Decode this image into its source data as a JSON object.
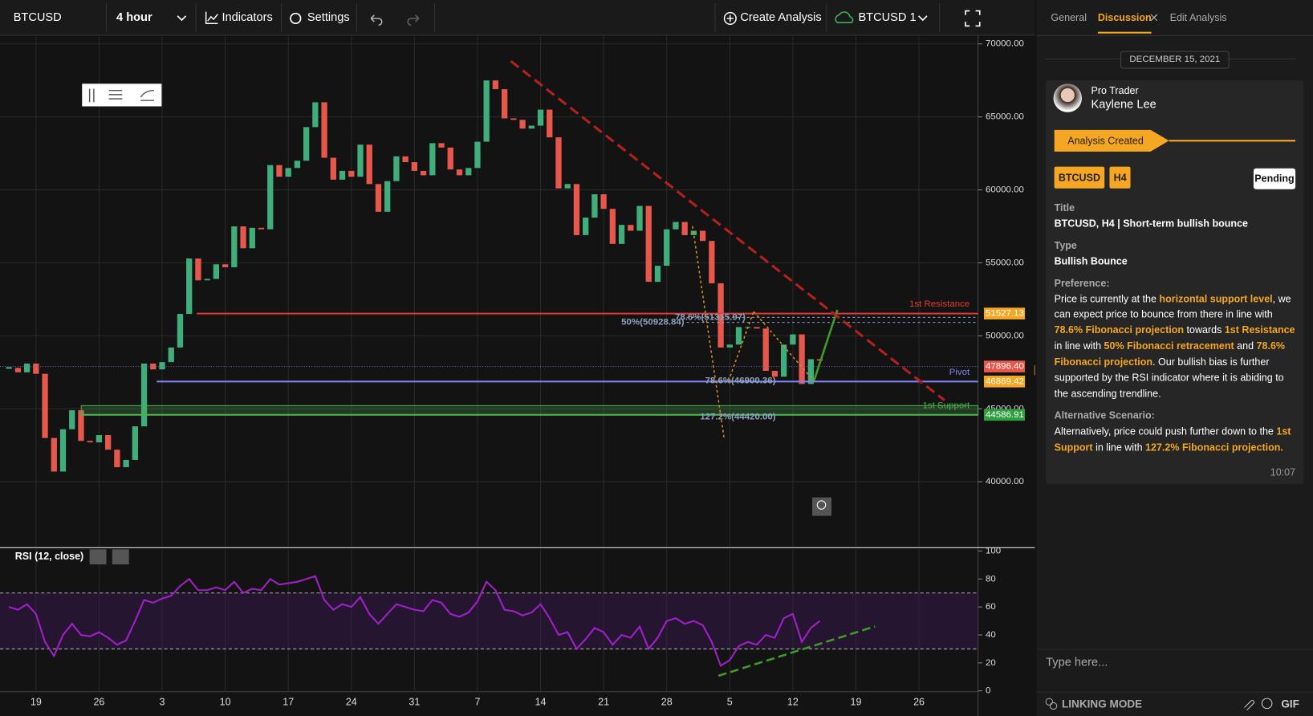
{
  "toolbar": {
    "symbol": "BTCUSD",
    "interval": "4 hour",
    "indicators": "Indicators",
    "settings": "Settings",
    "create": "Create Analysis",
    "instrument": "BTCUSD 1"
  },
  "chart_data": [
    {
      "type": "candlestick",
      "x_labels": [
        "19",
        "26",
        "3",
        "10",
        "17",
        "24",
        "31",
        "7",
        "14",
        "21",
        "28",
        "5",
        "12",
        "19",
        "26"
      ],
      "values": [
        47800,
        47500,
        48100,
        47400,
        43000,
        40700,
        43600,
        44900,
        42800,
        42700,
        43200,
        42200,
        41000,
        41500,
        43800,
        48100,
        47700,
        48200,
        49200,
        51500,
        55300,
        53800,
        53900,
        54900,
        54700,
        57500,
        56000,
        57400,
        57300,
        61700,
        60900,
        61500,
        62000,
        64300,
        66000,
        62200,
        60700,
        61300,
        60900,
        63100,
        60400,
        58500,
        60600,
        62300,
        61900,
        61300,
        61000,
        63200,
        62900,
        61400,
        61000,
        61500,
        63300,
        67500,
        66900,
        64900,
        64800,
        64200,
        64400,
        65500,
        63600,
        60100,
        60400,
        56900,
        58100,
        59700,
        58700,
        56300,
        57600,
        57200,
        58900,
        53700,
        54800,
        57300,
        57800,
        56900,
        57200,
        56500,
        53600,
        49200,
        49400,
        50600,
        50600,
        50500,
        47600,
        47200,
        49400,
        50100,
        46700,
        48400,
        48300
      ],
      "up_color": "#3fae7a",
      "down_color": "#e8574c",
      "ylim": [
        35600,
        70600
      ],
      "yticks": [
        {
          "value": 40000,
          "label": "40000.00"
        },
        {
          "value": 45000,
          "label": "45000.00"
        },
        {
          "value": 50000,
          "label": "50000.00"
        },
        {
          "value": 55000,
          "label": "55000.00"
        },
        {
          "value": 60000,
          "label": "60000.00"
        },
        {
          "value": 65000,
          "label": "65000.00"
        },
        {
          "value": 70000,
          "label": "70000.00"
        }
      ],
      "grid": true,
      "levels": [
        {
          "name": "1st Resistance",
          "value": 51527.13,
          "label": "51527.13",
          "color": "#e53935",
          "tag_color": "#f5a623"
        },
        {
          "name": "Pivot",
          "value": 46869.42,
          "label": "46869.42",
          "color": "#8080f0",
          "tag_color": "#f5a623"
        },
        {
          "name": "1st Support",
          "value": 44586.91,
          "label": "44586.91",
          "color": "#4caf50",
          "tag_color": "#2e9e3e"
        }
      ],
      "last_price": {
        "value": 47896.4,
        "label": "47896.40",
        "color": "#e8574c"
      },
      "fib_labels": [
        "50%(50928.84)",
        "78.6%(51315.97)",
        "78.6%(46900.36)",
        "127.2%(44420.00)"
      ]
    },
    {
      "type": "line",
      "title": "RSI (12, close)",
      "color": "#a020c8",
      "values": [
        60,
        58,
        62,
        55,
        35,
        25,
        40,
        48,
        40,
        39,
        42,
        38,
        33,
        36,
        50,
        65,
        63,
        66,
        68,
        75,
        80,
        72,
        72,
        74,
        72,
        78,
        70,
        73,
        72,
        80,
        76,
        77,
        78,
        80,
        82,
        65,
        58,
        62,
        60,
        67,
        55,
        48,
        55,
        62,
        60,
        58,
        57,
        65,
        63,
        55,
        53,
        56,
        64,
        78,
        72,
        58,
        57,
        54,
        56,
        62,
        52,
        40,
        42,
        30,
        37,
        45,
        42,
        33,
        40,
        38,
        46,
        30,
        38,
        50,
        52,
        48,
        50,
        47,
        35,
        18,
        22,
        32,
        35,
        33,
        40,
        38,
        52,
        55,
        35,
        45,
        50
      ],
      "ylim": [
        0,
        100
      ],
      "yticks": [
        0,
        20,
        40,
        60,
        80,
        100
      ],
      "levels": [
        30,
        70
      ]
    }
  ],
  "sidebar": {
    "tabs": [
      "General",
      "Discussion",
      "Edit Analysis"
    ],
    "active_tab": 1,
    "date": "DECEMBER 15, 2021",
    "author_role": "Pro Trader",
    "author_name": "Kaylene Lee",
    "status_banner": "Analysis Created",
    "tags": [
      "BTCUSD",
      "H4"
    ],
    "state": "Pending",
    "fields": [
      {
        "label": "Title",
        "value": "BTCUSD, H4 | Short-term bullish bounce"
      },
      {
        "label": "Type",
        "value": "Bullish Bounce"
      }
    ],
    "preference": {
      "label": "Preference:",
      "segments": [
        {
          "text": "Price is currently at the ",
          "emphasis": false
        },
        {
          "text": "horizontal support level",
          "emphasis": true
        },
        {
          "text": ", we can expect price to bounce from there in line with ",
          "emphasis": false
        },
        {
          "text": "78.6% Fibonacci projection",
          "emphasis": true
        },
        {
          "text": " towards ",
          "emphasis": false
        },
        {
          "text": "1st Resistance",
          "emphasis": true
        },
        {
          "text": " in line with ",
          "emphasis": false
        },
        {
          "text": "50% Fibonacci retracement",
          "emphasis": true
        },
        {
          "text": " and ",
          "emphasis": false
        },
        {
          "text": "78.6% Fibonacci projection",
          "emphasis": true
        },
        {
          "text": ". Our bullish bias is further supported by the RSI indicator where it is abiding to the ascending trendline.",
          "emphasis": false
        }
      ]
    },
    "alternative": {
      "label": "Alternative Scenario:",
      "segments": [
        {
          "text": "Alternatively, price could push further down to the ",
          "emphasis": false
        },
        {
          "text": "1st Support",
          "emphasis": true
        },
        {
          "text": " in line with ",
          "emphasis": false
        },
        {
          "text": "127.2% Fibonacci projection.",
          "emphasis": true
        }
      ]
    },
    "time": "10:07",
    "input_placeholder": "Type here...",
    "linking_mode": "LINKING MODE",
    "gif": "GIF"
  }
}
